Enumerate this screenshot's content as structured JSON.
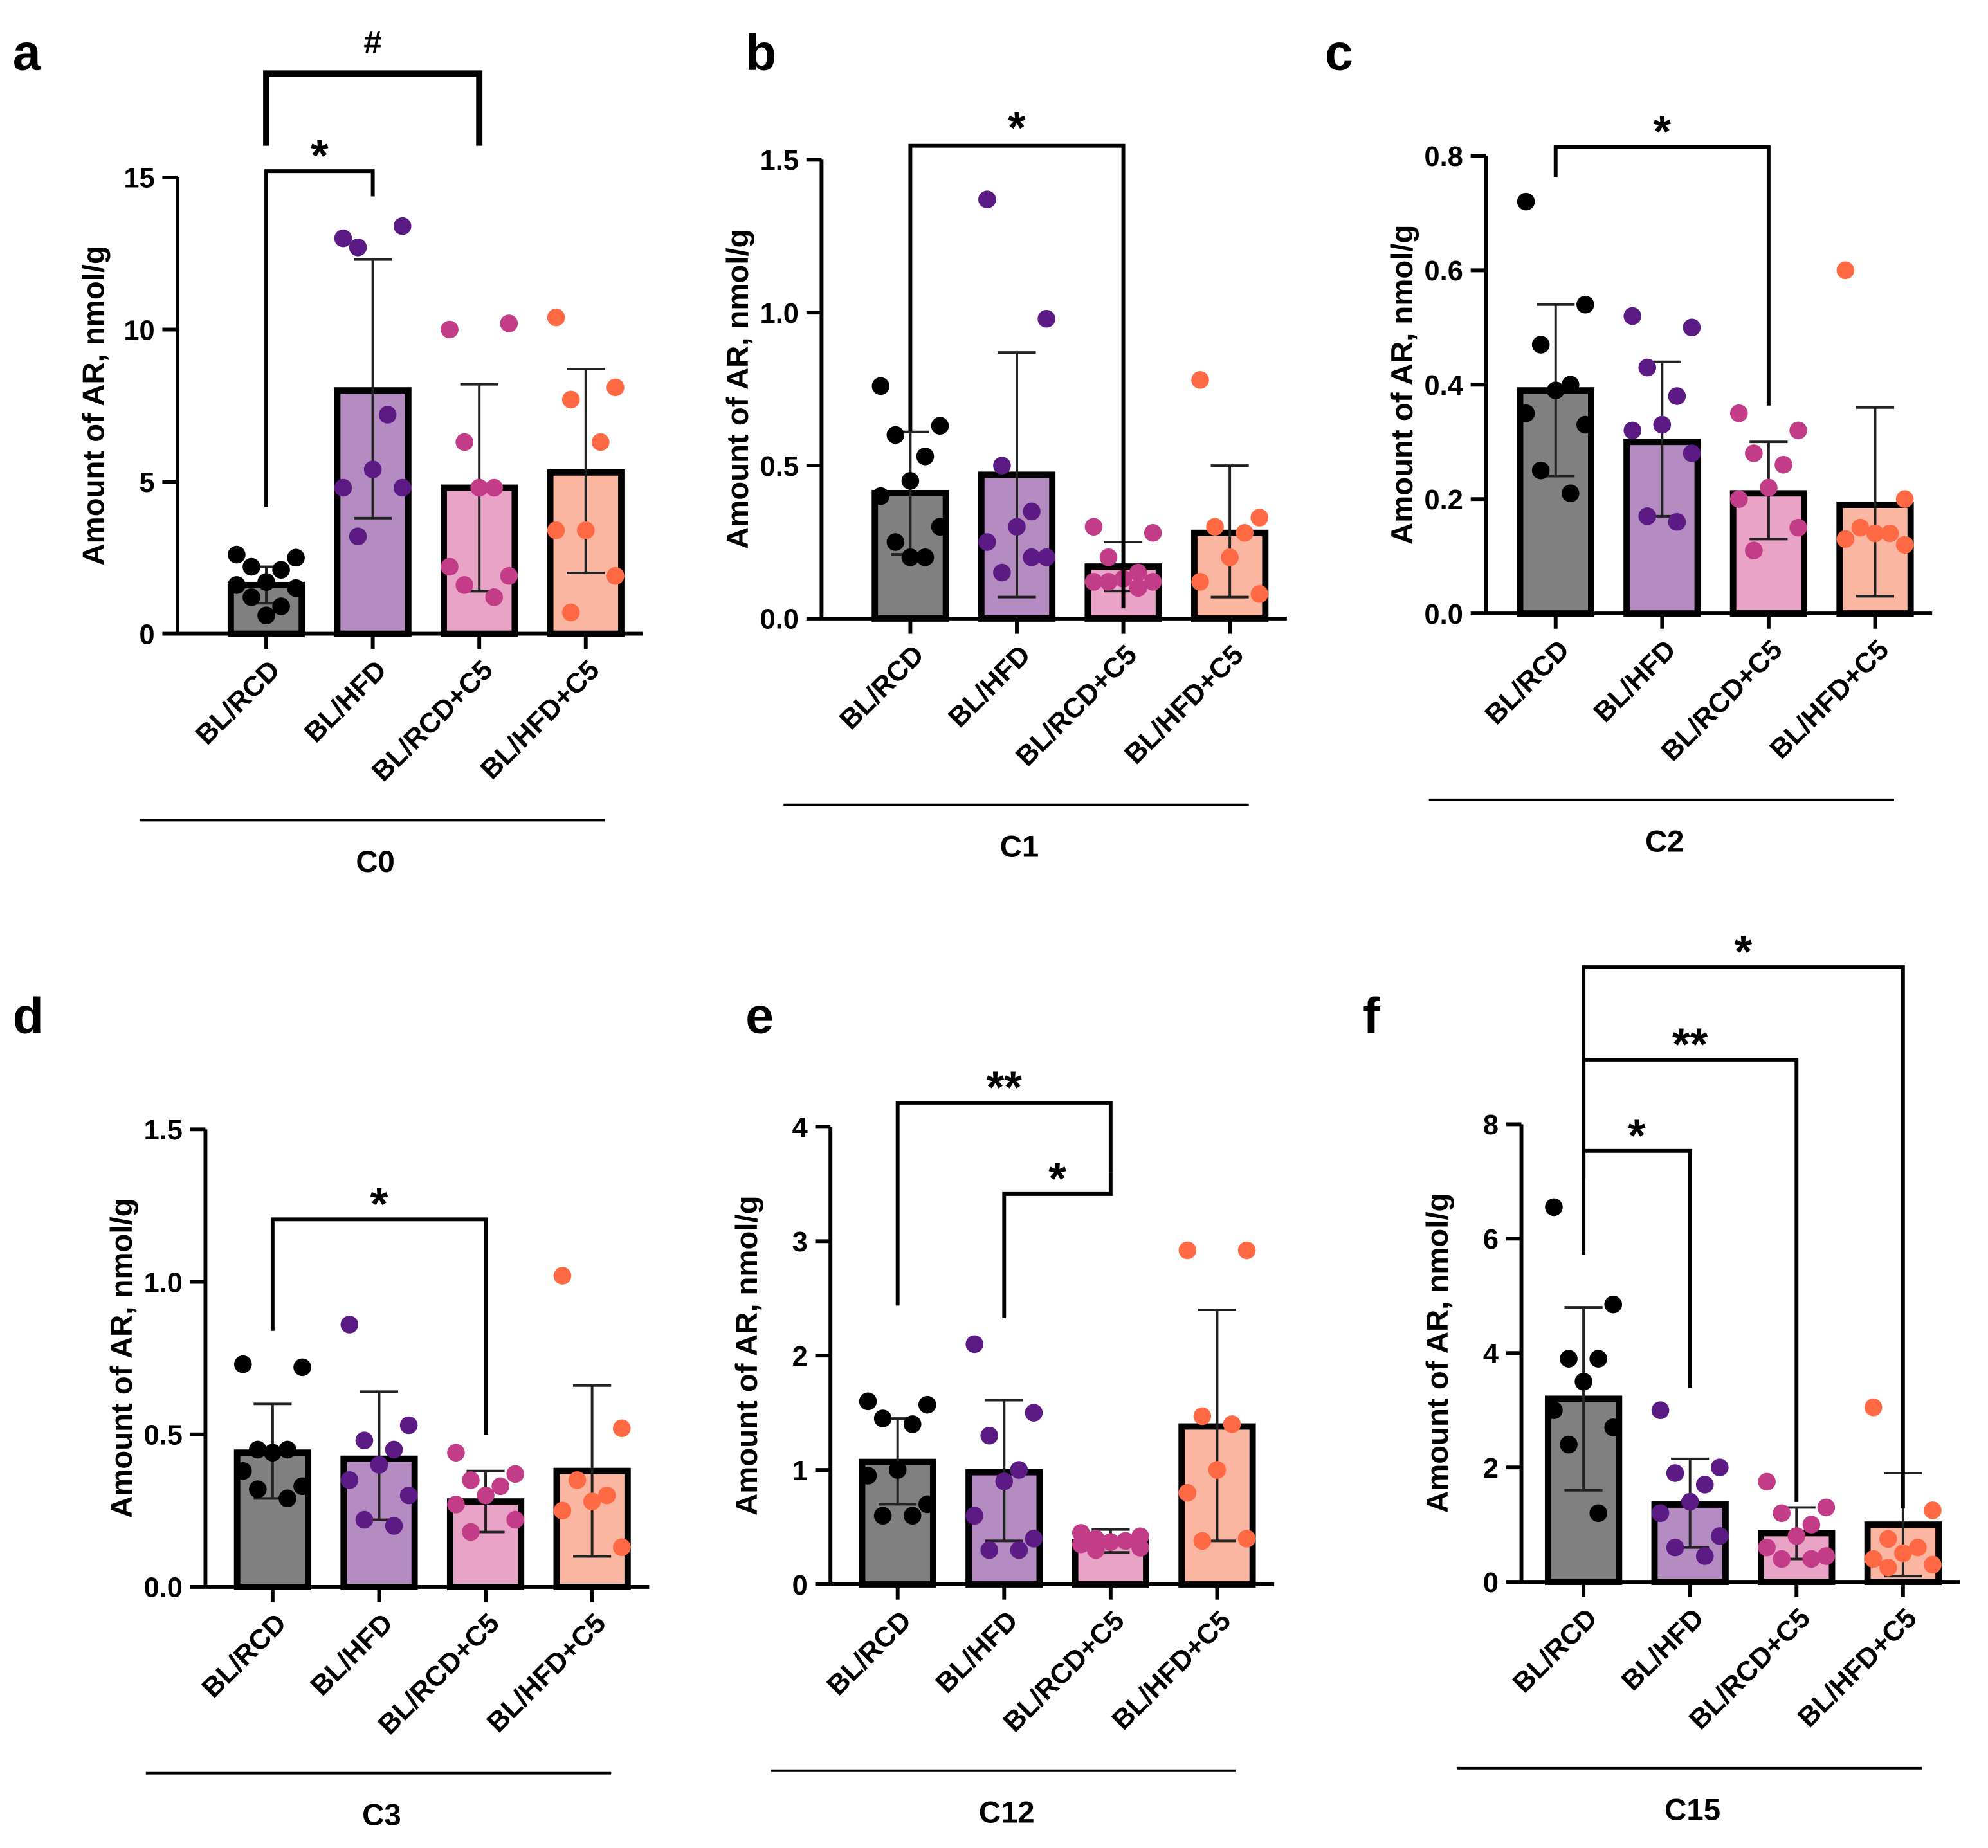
{
  "groups": [
    "BL/RCD",
    "BL/HFD",
    "BL/RCD+C5",
    "BL/HFD+C5"
  ],
  "colors": {
    "bar_fill": [
      "#808080",
      "#b48cc2",
      "#e8a3c6",
      "#fbb6a2"
    ],
    "dot": [
      "#000000",
      "#5b1a84",
      "#c23c87",
      "#ff6a45"
    ]
  },
  "chart_data": [
    {
      "panel": "a",
      "type": "bar",
      "title": "",
      "xlabel": "C0",
      "ylabel": "Amount of AR, nmol/g",
      "ylim": [
        0,
        15
      ],
      "yticks": [
        "0",
        "5",
        "10",
        "15"
      ],
      "ytick_values": [
        0,
        5,
        10,
        15
      ],
      "means": [
        1.6,
        8.0,
        4.8,
        5.3
      ],
      "sd_upper": [
        2.2,
        12.3,
        8.2,
        8.7
      ],
      "sd_lower": [
        1.0,
        3.8,
        1.4,
        2.0
      ],
      "points": [
        [
          2.6,
          2.5,
          2.2,
          2.1,
          1.7,
          1.6,
          1.5,
          1.2,
          0.9,
          0.6
        ],
        [
          13.0,
          13.4,
          12.7,
          7.2,
          5.4,
          4.8,
          4.8,
          3.2
        ],
        [
          10.0,
          10.2,
          6.3,
          4.8,
          4.8,
          2.2,
          1.9,
          1.6,
          1.2
        ],
        [
          10.4,
          8.1,
          7.7,
          6.3,
          3.4,
          3.4,
          1.9,
          0.7
        ]
      ],
      "comparisons": [
        {
          "groups": [
            0,
            1
          ],
          "label": "*"
        },
        {
          "groups": [
            0,
            2
          ],
          "label": "#"
        }
      ]
    },
    {
      "panel": "b",
      "type": "bar",
      "title": "",
      "xlabel": "C1",
      "ylabel": "Amount of AR, nmol/g",
      "ylim": [
        0,
        1.5
      ],
      "yticks": [
        "0.0",
        "0.5",
        "1.0",
        "1.5"
      ],
      "ytick_values": [
        0,
        0.5,
        1.0,
        1.5
      ],
      "means": [
        0.41,
        0.47,
        0.17,
        0.28
      ],
      "sd_upper": [
        0.61,
        0.87,
        0.25,
        0.5
      ],
      "sd_lower": [
        0.21,
        0.07,
        0.09,
        0.07
      ],
      "points": [
        [
          0.76,
          0.63,
          0.6,
          0.53,
          0.45,
          0.4,
          0.3,
          0.25,
          0.2,
          0.2
        ],
        [
          1.37,
          0.98,
          0.5,
          0.35,
          0.3,
          0.25,
          0.2,
          0.15,
          0.2
        ],
        [
          0.3,
          0.28,
          0.2,
          0.15,
          0.13,
          0.12,
          0.12,
          0.12,
          0.1
        ],
        [
          0.78,
          0.33,
          0.3,
          0.28,
          0.2,
          0.12,
          0.08
        ]
      ],
      "comparisons": [
        {
          "groups": [
            0,
            2
          ],
          "label": "*"
        }
      ]
    },
    {
      "panel": "c",
      "type": "bar",
      "title": "",
      "xlabel": "C2",
      "ylabel": "Amount of AR, nmol/g",
      "ylim": [
        0,
        0.8
      ],
      "yticks": [
        "0.0",
        "0.2",
        "0.4",
        "0.6",
        "0.8"
      ],
      "ytick_values": [
        0,
        0.2,
        0.4,
        0.6,
        0.8
      ],
      "means": [
        0.39,
        0.3,
        0.21,
        0.19
      ],
      "sd_upper": [
        0.54,
        0.44,
        0.3,
        0.36
      ],
      "sd_lower": [
        0.24,
        0.17,
        0.13,
        0.03
      ],
      "points": [
        [
          0.72,
          0.54,
          0.47,
          0.4,
          0.39,
          0.35,
          0.33,
          0.25,
          0.21
        ],
        [
          0.52,
          0.5,
          0.43,
          0.38,
          0.33,
          0.32,
          0.28,
          0.17,
          0.16
        ],
        [
          0.35,
          0.32,
          0.28,
          0.26,
          0.22,
          0.2,
          0.15,
          0.11
        ],
        [
          0.6,
          0.2,
          0.15,
          0.14,
          0.14,
          0.13,
          0.12
        ]
      ],
      "comparisons": [
        {
          "groups": [
            0,
            2
          ],
          "label": "*"
        }
      ]
    },
    {
      "panel": "d",
      "type": "bar",
      "title": "",
      "xlabel": "C3",
      "ylabel": "Amount of AR, nmol/g",
      "ylim": [
        0,
        1.5
      ],
      "yticks": [
        "0.0",
        "0.5",
        "1.0",
        "1.5"
      ],
      "ytick_values": [
        0,
        0.5,
        1.0,
        1.5
      ],
      "means": [
        0.44,
        0.42,
        0.28,
        0.38
      ],
      "sd_upper": [
        0.6,
        0.64,
        0.38,
        0.66
      ],
      "sd_lower": [
        0.29,
        0.22,
        0.18,
        0.1
      ],
      "points": [
        [
          0.73,
          0.72,
          0.45,
          0.45,
          0.44,
          0.38,
          0.33,
          0.32,
          0.29
        ],
        [
          0.86,
          0.53,
          0.48,
          0.45,
          0.4,
          0.35,
          0.3,
          0.22,
          0.2
        ],
        [
          0.44,
          0.37,
          0.35,
          0.33,
          0.3,
          0.27,
          0.22,
          0.18
        ],
        [
          1.02,
          0.52,
          0.35,
          0.3,
          0.28,
          0.25,
          0.13
        ]
      ],
      "comparisons": [
        {
          "groups": [
            0,
            2
          ],
          "label": "*"
        }
      ]
    },
    {
      "panel": "e",
      "type": "bar",
      "title": "",
      "xlabel": "C12",
      "ylabel": "Amount of AR, nmol/g",
      "ylim": [
        0,
        4
      ],
      "yticks": [
        "0",
        "1",
        "2",
        "3",
        "4"
      ],
      "ytick_values": [
        0,
        1,
        2,
        3,
        4
      ],
      "means": [
        1.07,
        0.98,
        0.37,
        1.38
      ],
      "sd_upper": [
        1.45,
        1.61,
        0.48,
        2.4
      ],
      "sd_lower": [
        0.7,
        0.38,
        0.28,
        0.38
      ],
      "points": [
        [
          1.6,
          1.57,
          1.45,
          1.4,
          1.0,
          0.95,
          0.7,
          0.6,
          0.6
        ],
        [
          2.1,
          1.5,
          1.3,
          1.0,
          0.9,
          0.6,
          0.4,
          0.3,
          0.3
        ],
        [
          0.45,
          0.42,
          0.4,
          0.38,
          0.37,
          0.35,
          0.32,
          0.3
        ],
        [
          2.92,
          2.92,
          1.47,
          1.4,
          1.0,
          0.8,
          0.4,
          0.38
        ]
      ],
      "comparisons": [
        {
          "groups": [
            0,
            2
          ],
          "label": "**"
        },
        {
          "groups": [
            1,
            2
          ],
          "label": "*"
        }
      ]
    },
    {
      "panel": "f",
      "type": "bar",
      "title": "",
      "xlabel": "C15",
      "ylabel": "Amount of AR, nmol/g",
      "ylim": [
        0,
        8
      ],
      "yticks": [
        "0",
        "2",
        "4",
        "6",
        "8"
      ],
      "ytick_values": [
        0,
        2,
        4,
        6,
        8
      ],
      "means": [
        3.2,
        1.35,
        0.85,
        1.0
      ],
      "sd_upper": [
        4.8,
        2.15,
        1.3,
        1.9
      ],
      "sd_lower": [
        1.6,
        0.6,
        0.4,
        0.1
      ],
      "points": [
        [
          6.55,
          4.85,
          3.9,
          3.9,
          3.5,
          3.0,
          2.7,
          2.4,
          1.2
        ],
        [
          3.0,
          2.0,
          1.9,
          1.7,
          1.4,
          1.2,
          0.8,
          0.6,
          0.45
        ],
        [
          1.75,
          1.3,
          1.2,
          1.0,
          0.8,
          0.6,
          0.45,
          0.4,
          0.4
        ],
        [
          3.05,
          1.25,
          0.75,
          0.6,
          0.5,
          0.4,
          0.3,
          0.25
        ]
      ],
      "comparisons": [
        {
          "groups": [
            0,
            1
          ],
          "label": "*"
        },
        {
          "groups": [
            0,
            2
          ],
          "label": "**"
        },
        {
          "groups": [
            0,
            3
          ],
          "label": "*"
        }
      ]
    }
  ]
}
